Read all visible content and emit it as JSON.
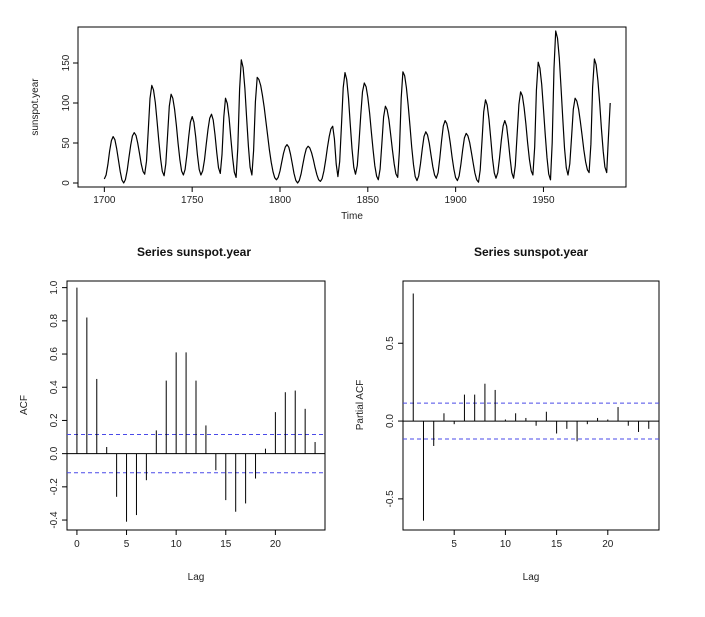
{
  "chart_data": [
    {
      "type": "line",
      "title": "",
      "xlabel": "Time",
      "ylabel": "sunspot.year",
      "xlim": [
        1685,
        1997
      ],
      "ylim": [
        -5,
        195
      ],
      "xticks": [
        "1700",
        "1750",
        "1800",
        "1850",
        "1900",
        "1950"
      ],
      "yticks": [
        "0",
        "50",
        "100",
        "150"
      ],
      "peaks": [
        {
          "x": 1700,
          "y": 5
        },
        {
          "x": 1705,
          "y": 58
        },
        {
          "x": 1711,
          "y": 0
        },
        {
          "x": 1717,
          "y": 63
        },
        {
          "x": 1723,
          "y": 11
        },
        {
          "x": 1727,
          "y": 122
        },
        {
          "x": 1734,
          "y": 9
        },
        {
          "x": 1738,
          "y": 111
        },
        {
          "x": 1745,
          "y": 10
        },
        {
          "x": 1750,
          "y": 83
        },
        {
          "x": 1755,
          "y": 10
        },
        {
          "x": 1761,
          "y": 86
        },
        {
          "x": 1766,
          "y": 12
        },
        {
          "x": 1769,
          "y": 106
        },
        {
          "x": 1775,
          "y": 7
        },
        {
          "x": 1778,
          "y": 154
        },
        {
          "x": 1784,
          "y": 10
        },
        {
          "x": 1787,
          "y": 132
        },
        {
          "x": 1798,
          "y": 4
        },
        {
          "x": 1804,
          "y": 48
        },
        {
          "x": 1810,
          "y": 0
        },
        {
          "x": 1816,
          "y": 46
        },
        {
          "x": 1823,
          "y": 2
        },
        {
          "x": 1830,
          "y": 71
        },
        {
          "x": 1833,
          "y": 8
        },
        {
          "x": 1837,
          "y": 138
        },
        {
          "x": 1843,
          "y": 11
        },
        {
          "x": 1848,
          "y": 125
        },
        {
          "x": 1856,
          "y": 4
        },
        {
          "x": 1860,
          "y": 96
        },
        {
          "x": 1867,
          "y": 7
        },
        {
          "x": 1870,
          "y": 139
        },
        {
          "x": 1878,
          "y": 3
        },
        {
          "x": 1883,
          "y": 64
        },
        {
          "x": 1889,
          "y": 6
        },
        {
          "x": 1894,
          "y": 78
        },
        {
          "x": 1901,
          "y": 3
        },
        {
          "x": 1906,
          "y": 62
        },
        {
          "x": 1913,
          "y": 1
        },
        {
          "x": 1917,
          "y": 104
        },
        {
          "x": 1923,
          "y": 6
        },
        {
          "x": 1928,
          "y": 78
        },
        {
          "x": 1933,
          "y": 6
        },
        {
          "x": 1937,
          "y": 114
        },
        {
          "x": 1944,
          "y": 10
        },
        {
          "x": 1947,
          "y": 151
        },
        {
          "x": 1954,
          "y": 4
        },
        {
          "x": 1957,
          "y": 190
        },
        {
          "x": 1964,
          "y": 10
        },
        {
          "x": 1968,
          "y": 106
        },
        {
          "x": 1976,
          "y": 13
        },
        {
          "x": 1979,
          "y": 155
        },
        {
          "x": 1986,
          "y": 13
        },
        {
          "x": 1988,
          "y": 100
        }
      ]
    },
    {
      "type": "bar",
      "title": "Series  sunspot.year",
      "xlabel": "Lag",
      "ylabel": "ACF",
      "xlim": [
        -1,
        25
      ],
      "ylim": [
        -0.46,
        1.04
      ],
      "xticks": [
        "0",
        "5",
        "10",
        "15",
        "20"
      ],
      "yticks": [
        "-0.4",
        "-0.2",
        "0.0",
        "0.2",
        "0.4",
        "0.6",
        "0.8",
        "1.0"
      ],
      "ci": 0.115,
      "lags": [
        0,
        1,
        2,
        3,
        4,
        5,
        6,
        7,
        8,
        9,
        10,
        11,
        12,
        13,
        14,
        15,
        16,
        17,
        18,
        19,
        20,
        21,
        22,
        23,
        24
      ],
      "values": [
        1.0,
        0.82,
        0.45,
        0.04,
        -0.26,
        -0.41,
        -0.37,
        -0.16,
        0.14,
        0.44,
        0.61,
        0.61,
        0.44,
        0.17,
        -0.1,
        -0.28,
        -0.35,
        -0.3,
        -0.15,
        0.03,
        0.25,
        0.37,
        0.38,
        0.27,
        0.07
      ]
    },
    {
      "type": "bar",
      "title": "Series  sunspot.year",
      "xlabel": "Lag",
      "ylabel": "Partial ACF",
      "xlim": [
        0,
        25
      ],
      "ylim": [
        -0.7,
        0.9
      ],
      "xticks": [
        "5",
        "10",
        "15",
        "20"
      ],
      "yticks": [
        "-0.5",
        "0.0",
        "0.5"
      ],
      "ci": 0.115,
      "lags": [
        1,
        2,
        3,
        4,
        5,
        6,
        7,
        8,
        9,
        10,
        11,
        12,
        13,
        14,
        15,
        16,
        17,
        18,
        19,
        20,
        21,
        22,
        23,
        24
      ],
      "values": [
        0.82,
        -0.64,
        -0.16,
        0.05,
        -0.02,
        0.17,
        0.17,
        0.24,
        0.2,
        0.01,
        0.05,
        0.02,
        -0.03,
        0.06,
        -0.08,
        -0.05,
        -0.13,
        -0.02,
        0.02,
        0.01,
        0.09,
        -0.03,
        -0.07,
        -0.05
      ]
    }
  ],
  "colors": {
    "line": "#000000",
    "ci": "#4a4ae8",
    "frame": "#000000",
    "text": "#222222"
  }
}
